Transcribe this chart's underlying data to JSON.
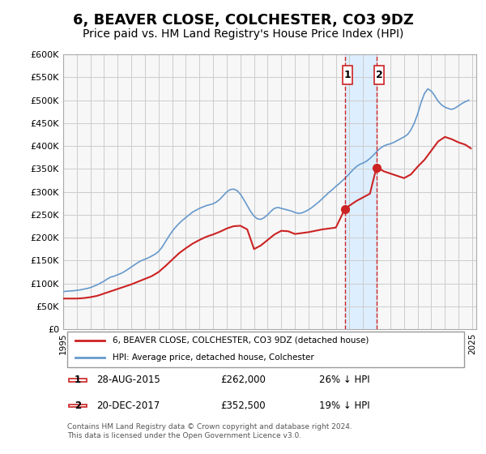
{
  "title": "6, BEAVER CLOSE, COLCHESTER, CO3 9DZ",
  "subtitle": "Price paid vs. HM Land Registry's House Price Index (HPI)",
  "title_fontsize": 13,
  "subtitle_fontsize": 10,
  "bg_color": "#ffffff",
  "plot_bg_color": "#f7f7f7",
  "grid_color": "#cccccc",
  "hpi_color": "#6699cc",
  "price_color": "#cc2222",
  "ylim": [
    0,
    600000
  ],
  "yticks": [
    0,
    50000,
    100000,
    150000,
    200000,
    250000,
    300000,
    350000,
    400000,
    450000,
    500000,
    550000,
    600000
  ],
  "ytick_labels": [
    "£0",
    "£50K",
    "£100K",
    "£150K",
    "£200K",
    "£250K",
    "£300K",
    "£350K",
    "£400K",
    "£450K",
    "£500K",
    "£550K",
    "£600K"
  ],
  "xlim_start": 1995.0,
  "xlim_end": 2025.3,
  "xticks": [
    1995,
    1996,
    1997,
    1998,
    1999,
    2000,
    2001,
    2002,
    2003,
    2004,
    2005,
    2006,
    2007,
    2008,
    2009,
    2010,
    2011,
    2012,
    2013,
    2014,
    2015,
    2016,
    2017,
    2018,
    2019,
    2020,
    2021,
    2022,
    2023,
    2024,
    2025
  ],
  "sale1_date": 2015.65,
  "sale1_price": 262000,
  "sale1_label": "1",
  "sale2_date": 2017.97,
  "sale2_price": 352500,
  "sale2_label": "2",
  "shade_start": 2015.65,
  "shade_end": 2017.97,
  "shade_color": "#ddeeff",
  "vline_color": "#cc2222",
  "vline_style": "--",
  "legend_line1": "6, BEAVER CLOSE, COLCHESTER, CO3 9DZ (detached house)",
  "legend_line2": "HPI: Average price, detached house, Colchester",
  "table_row1_num": "1",
  "table_row1_date": "28-AUG-2015",
  "table_row1_price": "£262,000",
  "table_row1_change": "26% ↓ HPI",
  "table_row2_num": "2",
  "table_row2_date": "20-DEC-2017",
  "table_row2_price": "£352,500",
  "table_row2_change": "19% ↓ HPI",
  "footnote": "Contains HM Land Registry data © Crown copyright and database right 2024.\nThis data is licensed under the Open Government Licence v3.0.",
  "hpi_data_x": [
    1995.0,
    1995.25,
    1995.5,
    1995.75,
    1996.0,
    1996.25,
    1996.5,
    1996.75,
    1997.0,
    1997.25,
    1997.5,
    1997.75,
    1998.0,
    1998.25,
    1998.5,
    1998.75,
    1999.0,
    1999.25,
    1999.5,
    1999.75,
    2000.0,
    2000.25,
    2000.5,
    2000.75,
    2001.0,
    2001.25,
    2001.5,
    2001.75,
    2002.0,
    2002.25,
    2002.5,
    2002.75,
    2003.0,
    2003.25,
    2003.5,
    2003.75,
    2004.0,
    2004.25,
    2004.5,
    2004.75,
    2005.0,
    2005.25,
    2005.5,
    2005.75,
    2006.0,
    2006.25,
    2006.5,
    2006.75,
    2007.0,
    2007.25,
    2007.5,
    2007.75,
    2008.0,
    2008.25,
    2008.5,
    2008.75,
    2009.0,
    2009.25,
    2009.5,
    2009.75,
    2010.0,
    2010.25,
    2010.5,
    2010.75,
    2011.0,
    2011.25,
    2011.5,
    2011.75,
    2012.0,
    2012.25,
    2012.5,
    2012.75,
    2013.0,
    2013.25,
    2013.5,
    2013.75,
    2014.0,
    2014.25,
    2014.5,
    2014.75,
    2015.0,
    2015.25,
    2015.5,
    2015.75,
    2016.0,
    2016.25,
    2016.5,
    2016.75,
    2017.0,
    2017.25,
    2017.5,
    2017.75,
    2018.0,
    2018.25,
    2018.5,
    2018.75,
    2019.0,
    2019.25,
    2019.5,
    2019.75,
    2020.0,
    2020.25,
    2020.5,
    2020.75,
    2021.0,
    2021.25,
    2021.5,
    2021.75,
    2022.0,
    2022.25,
    2022.5,
    2022.75,
    2023.0,
    2023.25,
    2023.5,
    2023.75,
    2024.0,
    2024.25,
    2024.5,
    2024.75
  ],
  "hpi_data_y": [
    82000,
    83000,
    83500,
    84000,
    85000,
    86000,
    87500,
    89000,
    91000,
    94000,
    97000,
    101000,
    105000,
    110000,
    114000,
    116000,
    119000,
    122000,
    126000,
    131000,
    136000,
    141000,
    146000,
    150000,
    153000,
    156000,
    160000,
    164000,
    170000,
    179000,
    191000,
    203000,
    214000,
    223000,
    231000,
    238000,
    244000,
    250000,
    256000,
    260000,
    264000,
    267000,
    270000,
    272000,
    274000,
    278000,
    284000,
    292000,
    300000,
    305000,
    306000,
    303000,
    295000,
    283000,
    270000,
    257000,
    247000,
    241000,
    240000,
    244000,
    250000,
    258000,
    264000,
    266000,
    264000,
    262000,
    260000,
    258000,
    255000,
    253000,
    254000,
    257000,
    261000,
    266000,
    272000,
    278000,
    285000,
    292000,
    299000,
    305000,
    312000,
    318000,
    325000,
    332000,
    340000,
    348000,
    355000,
    360000,
    363000,
    367000,
    373000,
    380000,
    388000,
    395000,
    400000,
    403000,
    405000,
    408000,
    412000,
    416000,
    420000,
    425000,
    435000,
    450000,
    470000,
    495000,
    515000,
    525000,
    520000,
    510000,
    498000,
    490000,
    485000,
    482000,
    480000,
    483000,
    488000,
    493000,
    497000,
    500000
  ],
  "price_data_x": [
    1995.0,
    1995.5,
    1996.0,
    1996.5,
    1997.0,
    1997.5,
    1998.0,
    1998.5,
    1999.0,
    1999.5,
    2000.0,
    2000.5,
    2001.0,
    2001.5,
    2002.0,
    2002.5,
    2003.0,
    2003.5,
    2004.0,
    2004.5,
    2005.0,
    2005.5,
    2006.0,
    2006.5,
    2007.0,
    2007.5,
    2008.0,
    2008.5,
    2009.0,
    2009.5,
    2010.0,
    2010.5,
    2011.0,
    2011.5,
    2012.0,
    2012.5,
    2013.0,
    2013.5,
    2014.0,
    2014.5,
    2015.0,
    2015.65,
    2016.0,
    2016.5,
    2017.0,
    2017.5,
    2017.97,
    2018.0,
    2018.5,
    2019.0,
    2019.5,
    2020.0,
    2020.5,
    2021.0,
    2021.5,
    2022.0,
    2022.5,
    2023.0,
    2023.5,
    2024.0,
    2024.5,
    2024.9
  ],
  "price_data_y": [
    67000,
    67000,
    67000,
    68000,
    70000,
    73000,
    78000,
    83000,
    88000,
    93000,
    98000,
    104000,
    110000,
    116000,
    125000,
    138000,
    152000,
    166000,
    177000,
    187000,
    195000,
    202000,
    207000,
    213000,
    220000,
    225000,
    226000,
    218000,
    175000,
    183000,
    195000,
    207000,
    215000,
    214000,
    208000,
    210000,
    212000,
    215000,
    218000,
    220000,
    222000,
    262000,
    270000,
    280000,
    288000,
    296000,
    352500,
    355000,
    345000,
    340000,
    335000,
    330000,
    338000,
    355000,
    370000,
    390000,
    410000,
    420000,
    415000,
    408000,
    403000,
    395000
  ]
}
